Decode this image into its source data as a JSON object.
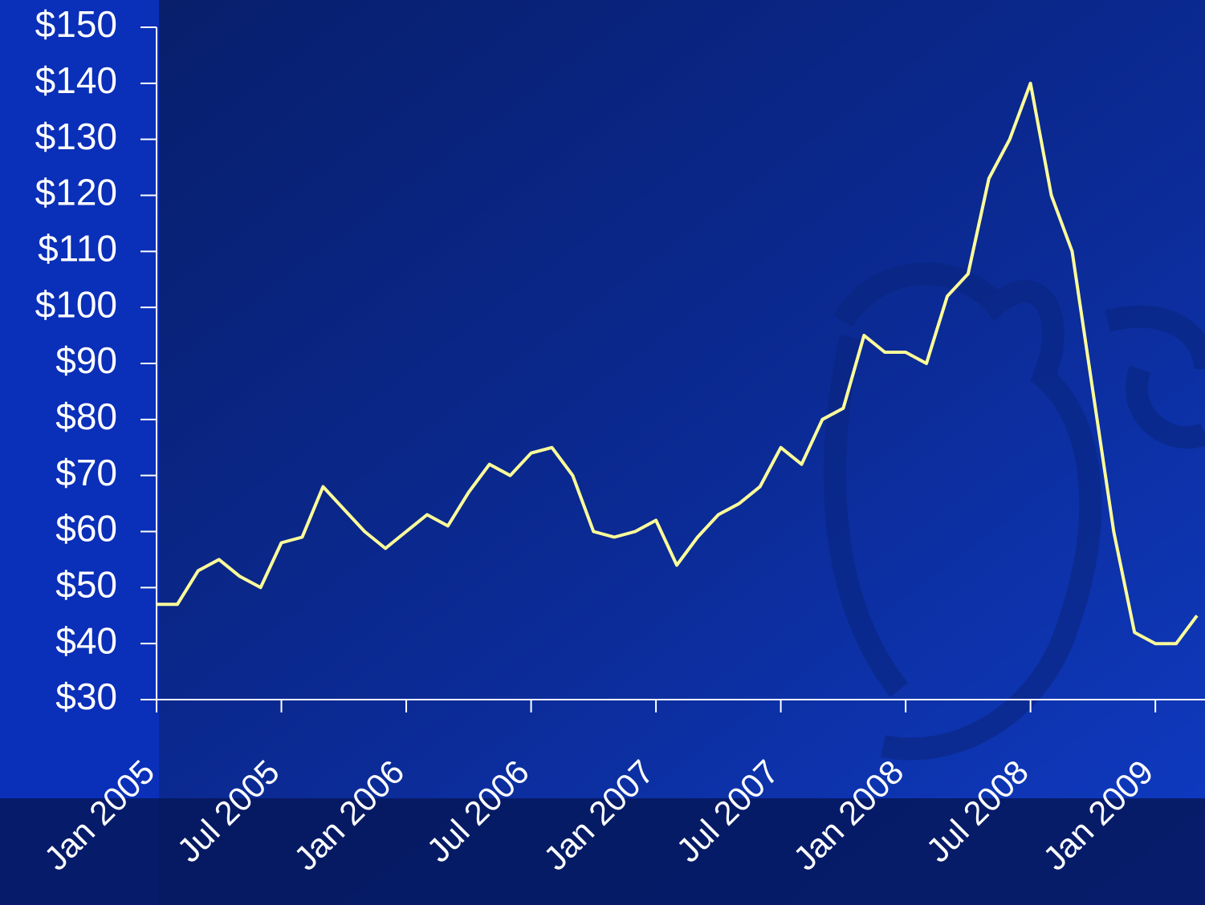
{
  "chart_data": {
    "type": "line",
    "x": [
      "2005-01",
      "2005-02",
      "2005-03",
      "2005-04",
      "2005-05",
      "2005-06",
      "2005-07",
      "2005-08",
      "2005-09",
      "2005-10",
      "2005-11",
      "2005-12",
      "2006-01",
      "2006-02",
      "2006-03",
      "2006-04",
      "2006-05",
      "2006-06",
      "2006-07",
      "2006-08",
      "2006-09",
      "2006-10",
      "2006-11",
      "2006-12",
      "2007-01",
      "2007-02",
      "2007-03",
      "2007-04",
      "2007-05",
      "2007-06",
      "2007-07",
      "2007-08",
      "2007-09",
      "2007-10",
      "2007-11",
      "2007-12",
      "2008-01",
      "2008-02",
      "2008-03",
      "2008-04",
      "2008-05",
      "2008-06",
      "2008-07",
      "2008-08",
      "2008-09",
      "2008-10",
      "2008-11",
      "2008-12",
      "2009-01",
      "2009-02",
      "2009-03"
    ],
    "values": [
      47,
      47,
      53,
      55,
      52,
      50,
      58,
      59,
      68,
      64,
      60,
      57,
      60,
      63,
      61,
      67,
      72,
      70,
      74,
      75,
      70,
      60,
      59,
      60,
      62,
      54,
      59,
      63,
      65,
      68,
      75,
      72,
      80,
      82,
      95,
      92,
      92,
      90,
      102,
      106,
      123,
      130,
      140,
      120,
      110,
      85,
      60,
      42,
      40,
      40,
      45
    ],
    "color": "#ffff99",
    "xlim": [
      "2005-01",
      "2009-03"
    ],
    "xticks": [
      {
        "value": "2005-01",
        "label": "Jan 2005"
      },
      {
        "value": "2005-07",
        "label": "Jul 2005"
      },
      {
        "value": "2006-01",
        "label": "Jan 2006"
      },
      {
        "value": "2006-07",
        "label": "Jul 2006"
      },
      {
        "value": "2007-01",
        "label": "Jan 2007"
      },
      {
        "value": "2007-07",
        "label": "Jul 2007"
      },
      {
        "value": "2008-01",
        "label": "Jan 2008"
      },
      {
        "value": "2008-07",
        "label": "Jul 2008"
      },
      {
        "value": "2009-01",
        "label": "Jan 2009"
      }
    ],
    "ylim": [
      30,
      150
    ],
    "yticks": [
      {
        "value": 30,
        "label": "$30"
      },
      {
        "value": 40,
        "label": "$40"
      },
      {
        "value": 50,
        "label": "$50"
      },
      {
        "value": 60,
        "label": "$60"
      },
      {
        "value": 70,
        "label": "$70"
      },
      {
        "value": 80,
        "label": "$80"
      },
      {
        "value": 90,
        "label": "$90"
      },
      {
        "value": 100,
        "label": "$100"
      },
      {
        "value": 110,
        "label": "$110"
      },
      {
        "value": 120,
        "label": "$120"
      },
      {
        "value": 130,
        "label": "$130"
      },
      {
        "value": 140,
        "label": "$140"
      },
      {
        "value": 150,
        "label": "$150"
      }
    ]
  }
}
